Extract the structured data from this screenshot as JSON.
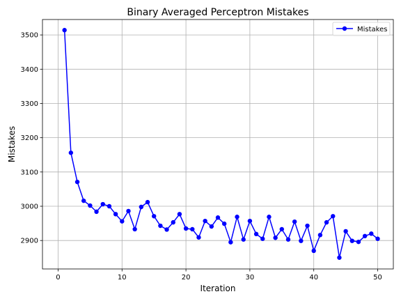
{
  "chart_data": {
    "type": "line",
    "title": "Binary Averaged Perceptron Mistakes",
    "xlabel": "Iteration",
    "ylabel": "Mistakes",
    "xlim": [
      -2.45,
      52.45
    ],
    "ylim": [
      2817,
      3545
    ],
    "x_ticks": [
      0,
      10,
      20,
      30,
      40,
      50
    ],
    "y_ticks": [
      2900,
      3000,
      3100,
      3200,
      3300,
      3400,
      3500
    ],
    "grid": true,
    "legend": {
      "position": "top-right"
    },
    "series": [
      {
        "name": "Mistakes",
        "color": "#0000ff",
        "marker": "circle",
        "x": [
          1,
          2,
          3,
          4,
          5,
          6,
          7,
          8,
          9,
          10,
          11,
          12,
          13,
          14,
          15,
          16,
          17,
          18,
          19,
          20,
          21,
          22,
          23,
          24,
          25,
          26,
          27,
          28,
          29,
          30,
          31,
          32,
          33,
          34,
          35,
          36,
          37,
          38,
          39,
          40,
          41,
          42,
          43,
          44,
          45,
          46,
          47,
          48,
          49,
          50
        ],
        "y": [
          3514,
          3156,
          3071,
          3016,
          3002,
          2984,
          3006,
          3000,
          2977,
          2956,
          2986,
          2933,
          2998,
          3012,
          2971,
          2943,
          2932,
          2953,
          2977,
          2935,
          2933,
          2909,
          2957,
          2941,
          2967,
          2949,
          2895,
          2969,
          2903,
          2957,
          2919,
          2905,
          2969,
          2908,
          2933,
          2903,
          2955,
          2899,
          2943,
          2870,
          2916,
          2953,
          2971,
          2850,
          2927,
          2899,
          2896,
          2913,
          2920,
          2905
        ]
      }
    ]
  }
}
